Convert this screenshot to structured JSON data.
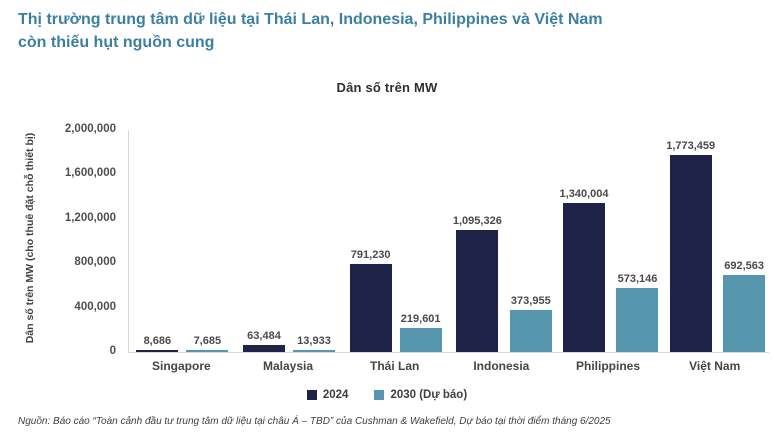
{
  "header": {
    "title_line1": "Thị trường trung tâm dữ liệu tại Thái Lan, Indonesia, Philippines và Việt Nam",
    "title_line2": "còn thiếu hụt nguồn cung"
  },
  "colors": {
    "heading": "#3b80a2",
    "series_2024": "#1f2347",
    "series_2030": "#5697ad",
    "axis_line": "#d9d9d9"
  },
  "chart_data": {
    "type": "bar",
    "title": "Dân số trên MW",
    "xlabel": "",
    "ylabel": "Dân số trên MW (cho thuê đặt chỗ thiết bị)",
    "ylim": [
      0,
      2000000
    ],
    "grid": false,
    "legend_position": "bottom",
    "yticks": [
      {
        "value": 0,
        "label": "0"
      },
      {
        "value": 400000,
        "label": "400,000"
      },
      {
        "value": 800000,
        "label": "800,000"
      },
      {
        "value": 1200000,
        "label": "1,200,000"
      },
      {
        "value": 1600000,
        "label": "1,600,000"
      },
      {
        "value": 2000000,
        "label": "2,000,000"
      }
    ],
    "categories": [
      "Singapore",
      "Malaysia",
      "Thái Lan",
      "Indonesia",
      "Philippines",
      "Việt Nam"
    ],
    "series": [
      {
        "name": "2024",
        "color": "#1f2347",
        "values": [
          8686,
          63484,
          791230,
          1095326,
          1340004,
          1773459
        ],
        "labels": [
          "8,686",
          "63,484",
          "791,230",
          "1,095,326",
          "1,340,004",
          "1,773,459"
        ]
      },
      {
        "name": "2030 (Dự báo)",
        "color": "#5697ad",
        "values": [
          7685,
          13933,
          219601,
          373955,
          573146,
          692563
        ],
        "labels": [
          "7,685",
          "13,933",
          "219,601",
          "373,955",
          "573,146",
          "692,563"
        ]
      }
    ]
  },
  "source": "Nguồn: Báo cáo “Toàn cảnh đầu tư trung tâm dữ liệu tại châu Á – TBD” của Cushman & Wakefield, Dự báo tại thời điểm tháng 6/2025"
}
